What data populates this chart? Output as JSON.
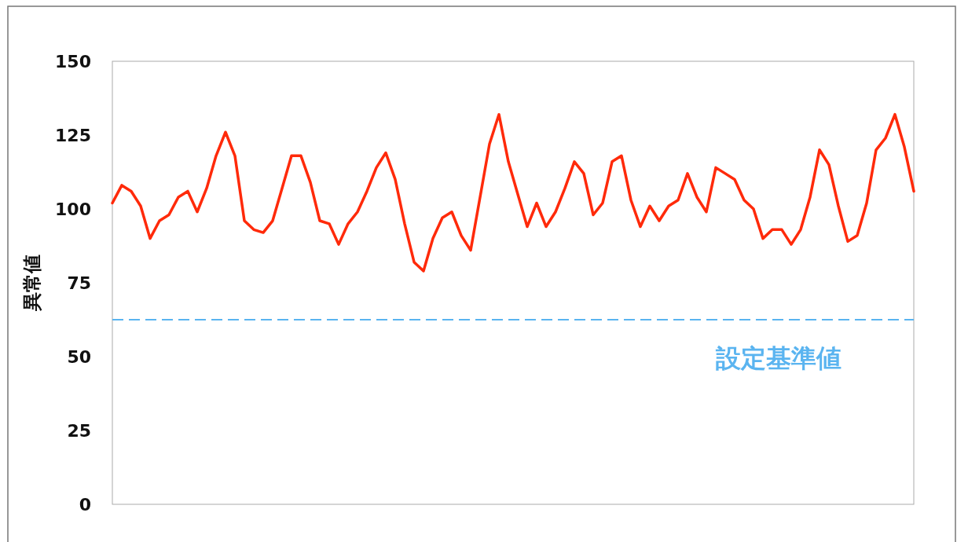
{
  "chart_data": {
    "type": "line",
    "ylabel": "異常値",
    "categories": [
      null,
      null,
      null,
      null,
      null,
      null,
      null,
      null,
      null,
      null,
      null,
      null,
      null,
      null,
      null,
      null,
      null,
      null,
      null,
      null,
      null,
      null,
      null,
      null,
      null,
      null,
      null,
      null,
      null,
      null,
      null,
      null,
      null,
      null,
      null,
      null,
      null,
      null,
      null,
      null,
      null,
      null,
      null,
      null,
      null,
      null,
      null,
      null,
      null,
      null,
      null,
      null,
      null,
      null,
      null,
      null,
      null,
      null,
      null,
      null,
      null,
      null,
      null,
      null,
      null,
      null,
      null,
      null,
      null,
      null,
      null,
      null,
      null,
      null,
      null,
      null,
      null,
      null,
      null,
      null,
      null,
      null,
      null,
      null,
      null,
      null
    ],
    "series": [
      {
        "color": "#ff2a0a",
        "values": [
          102,
          108,
          106,
          101,
          90,
          96,
          98,
          104,
          106,
          99,
          107,
          118,
          126,
          118,
          96,
          93,
          92,
          96,
          107,
          118,
          118,
          109,
          96,
          95,
          88,
          95,
          99,
          106,
          114,
          119,
          110,
          95,
          82,
          79,
          90,
          97,
          99,
          91,
          86,
          104,
          122,
          132,
          116,
          105,
          94,
          102,
          94,
          99,
          107,
          116,
          112,
          98,
          102,
          116,
          118,
          103,
          94,
          101,
          96,
          101,
          103,
          112,
          104,
          99,
          114,
          112,
          110,
          103,
          100,
          90,
          93,
          93,
          88,
          93,
          104,
          120,
          115,
          101,
          89,
          91,
          102,
          120,
          124,
          132,
          121,
          106
        ]
      }
    ],
    "ylim": [
      0,
      150
    ],
    "yticks": [
      0,
      25,
      50,
      75,
      100,
      125,
      150
    ],
    "tick_labels": "y",
    "ref_lines": [
      {
        "axis": "y",
        "value": 62.5,
        "label": "設定基準値",
        "color": "#5ab4f0",
        "line_style": "dashed"
      }
    ]
  }
}
